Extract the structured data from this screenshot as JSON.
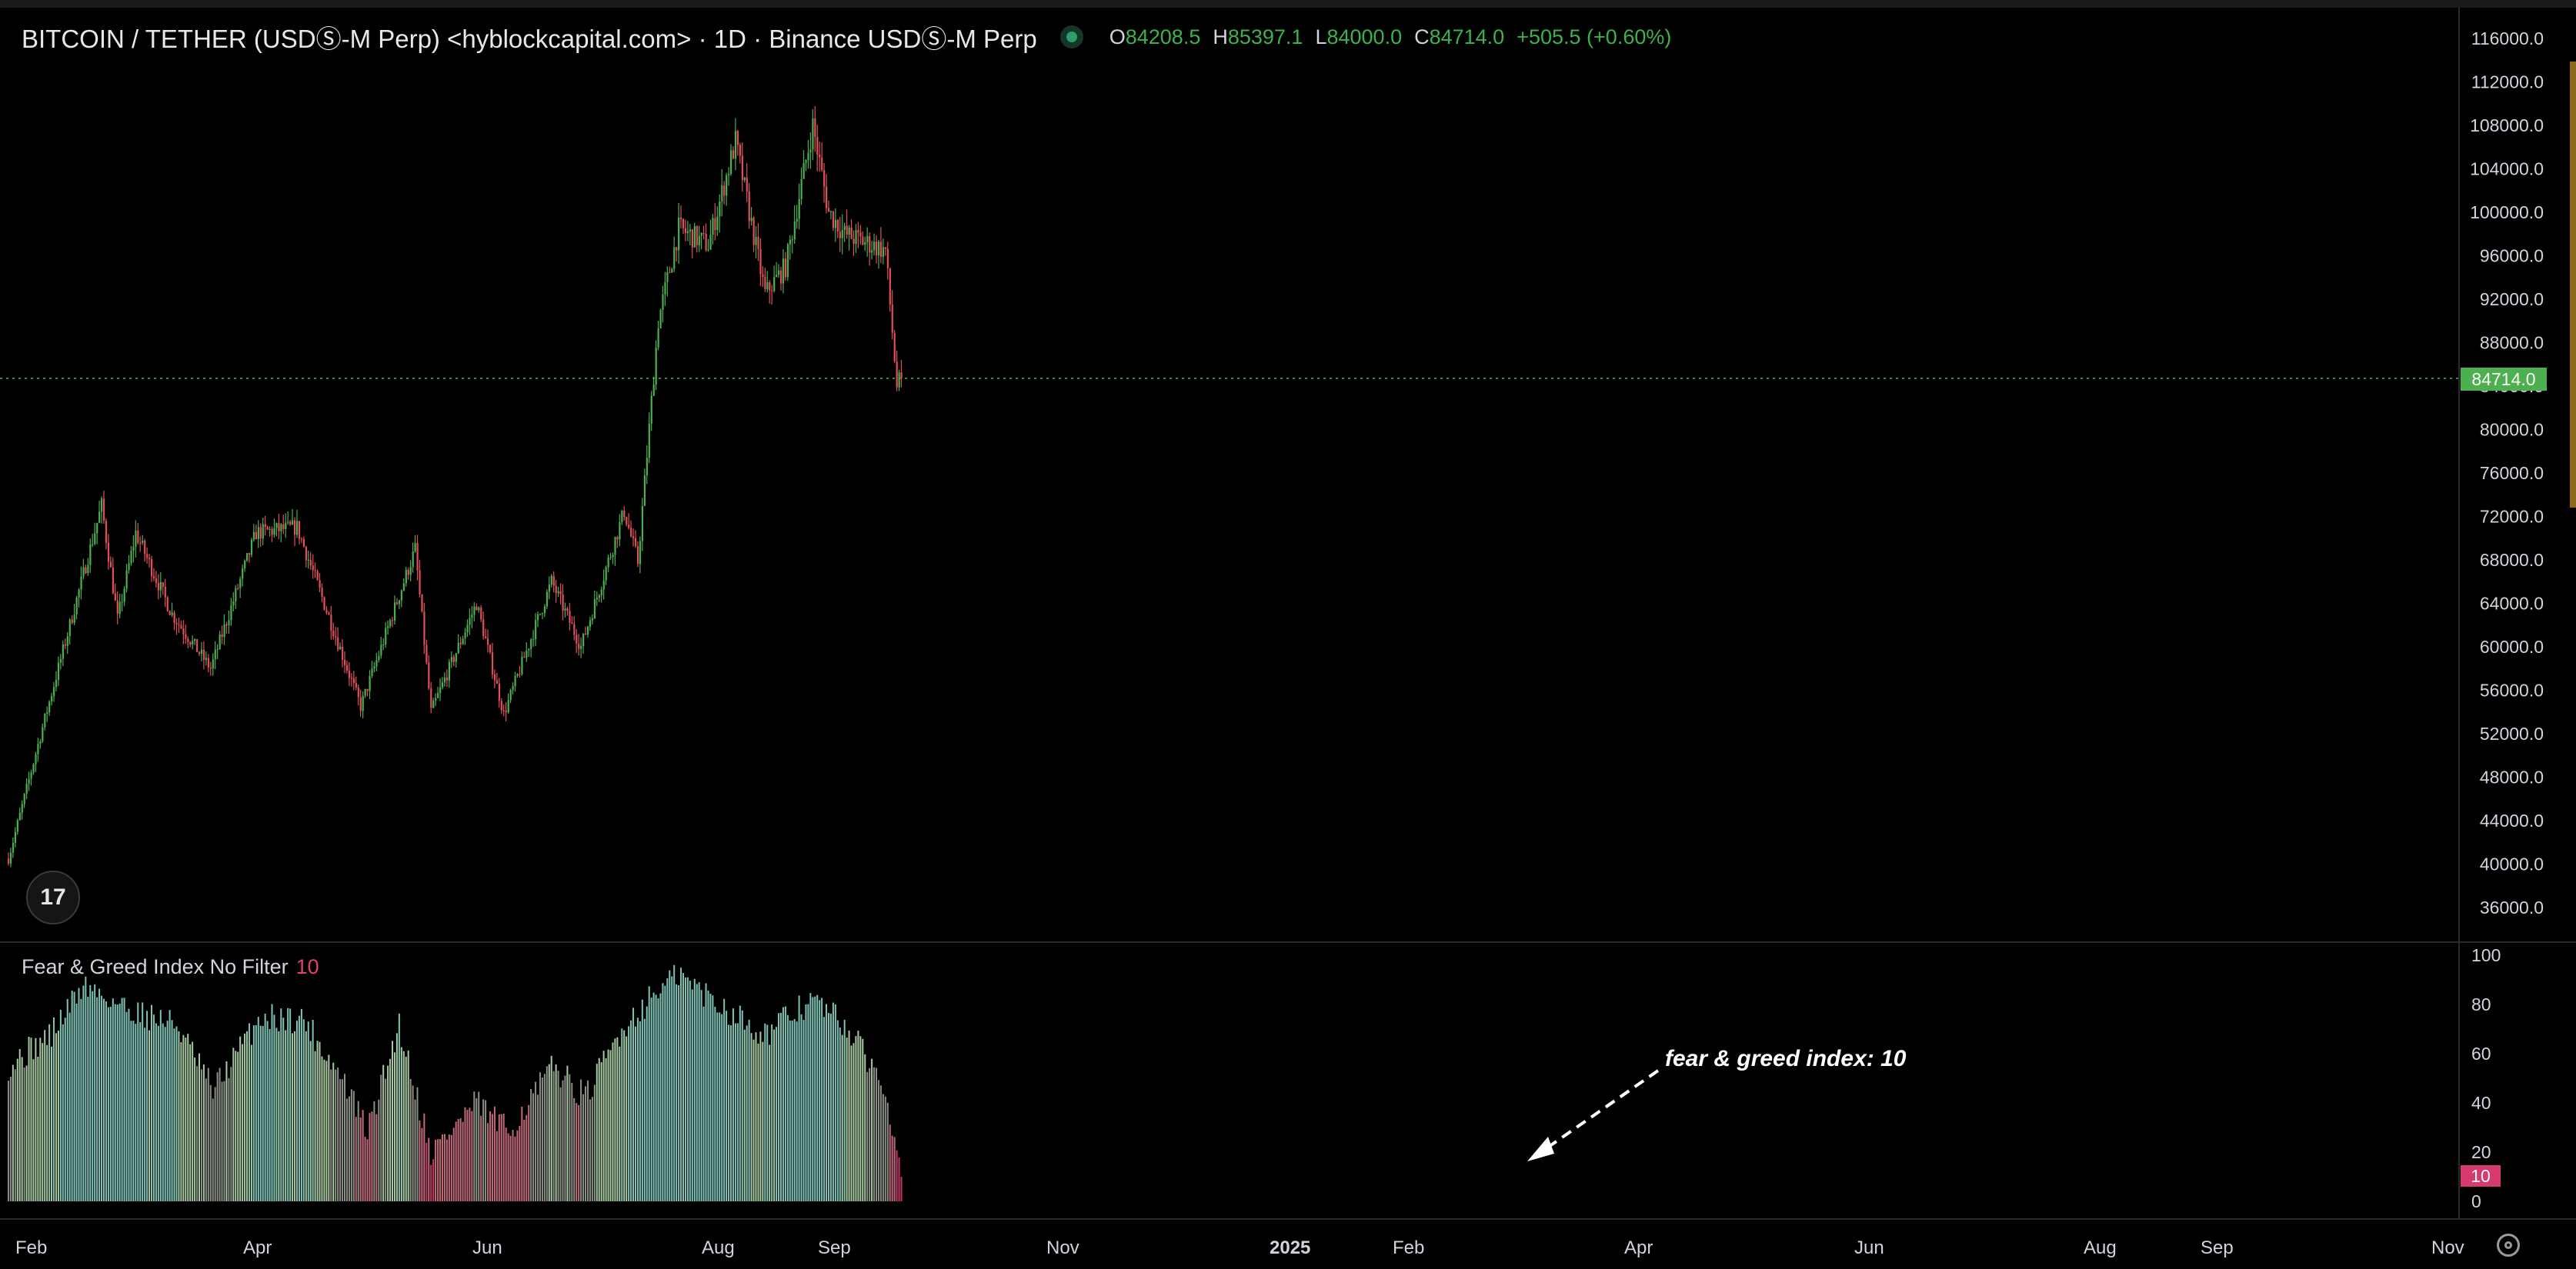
{
  "header": {
    "title": "BITCOIN / TETHER (USDⓈ-M Perp) <hyblockcapital.com> · 1D · Binance USDⓈ-M Perp",
    "ohlc": [
      {
        "key": "O",
        "value": "84208.5"
      },
      {
        "key": "H",
        "value": "85397.1"
      },
      {
        "key": "L",
        "value": "84000.0"
      },
      {
        "key": "C",
        "value": "84714.0"
      },
      {
        "key": "",
        "value": "+505.5 (+0.60%)"
      }
    ]
  },
  "colors": {
    "background": "#000000",
    "up": "#4caf50",
    "down": "#e0505a",
    "price_line": "#4caf50",
    "indicator_tag": "#d63b6e",
    "axis_text": "#d1d4dc"
  },
  "icons": {
    "logo": "tradingview-logo-icon",
    "settings": "gear-icon",
    "status": "live-dot-icon"
  },
  "tv_logo_text": "17",
  "price_tag": "84714.0",
  "indicator": {
    "title": "Fear & Greed Index No Filter",
    "current_value": "10"
  },
  "annotation": "fear & greed index: 10",
  "chart_data": [
    {
      "type": "candlestick",
      "title": "",
      "ylim": [
        33000,
        118000
      ],
      "y_ticks": [
        "116000.0",
        "112000.0",
        "108000.0",
        "104000.0",
        "100000.0",
        "96000.0",
        "92000.0",
        "88000.0",
        "84000.0",
        "80000.0",
        "76000.0",
        "72000.0",
        "68000.0",
        "64000.0",
        "60000.0",
        "56000.0",
        "52000.0",
        "48000.0",
        "44000.0",
        "40000.0",
        "36000.0"
      ],
      "x_ticks": [
        "Feb",
        "Apr",
        "Jun",
        "Aug",
        "Sep",
        "Nov",
        "2025",
        "Feb",
        "Apr",
        "Jun",
        "Aug",
        "Sep",
        "Nov"
      ],
      "last_price": 84714.0,
      "grid": false,
      "close_path": [
        {
          "x": "2024-02-01",
          "y": 40500
        },
        {
          "x": "2024-02-15",
          "y": 51800
        },
        {
          "x": "2024-02-28",
          "y": 62000
        },
        {
          "x": "2024-03-13",
          "y": 73000
        },
        {
          "x": "2024-03-20",
          "y": 62500
        },
        {
          "x": "2024-03-28",
          "y": 70500
        },
        {
          "x": "2024-04-13",
          "y": 63000
        },
        {
          "x": "2024-04-30",
          "y": 58000
        },
        {
          "x": "2024-05-20",
          "y": 70500
        },
        {
          "x": "2024-06-07",
          "y": 71000
        },
        {
          "x": "2024-06-24",
          "y": 61000
        },
        {
          "x": "2024-07-05",
          "y": 54500
        },
        {
          "x": "2024-07-29",
          "y": 69000
        },
        {
          "x": "2024-08-05",
          "y": 54000
        },
        {
          "x": "2024-08-25",
          "y": 64000
        },
        {
          "x": "2024-09-06",
          "y": 53800
        },
        {
          "x": "2024-09-27",
          "y": 66000
        },
        {
          "x": "2024-10-10",
          "y": 60000
        },
        {
          "x": "2024-10-29",
          "y": 72500
        },
        {
          "x": "2024-11-04",
          "y": 67800
        },
        {
          "x": "2024-11-13",
          "y": 90000
        },
        {
          "x": "2024-11-22",
          "y": 98500
        },
        {
          "x": "2024-12-05",
          "y": 97000
        },
        {
          "x": "2024-12-17",
          "y": 106500
        },
        {
          "x": "2024-12-30",
          "y": 92500
        },
        {
          "x": "2025-01-08",
          "y": 95000
        },
        {
          "x": "2025-01-20",
          "y": 108000
        },
        {
          "x": "2025-01-27",
          "y": 100000
        },
        {
          "x": "2025-02-03",
          "y": 98000
        },
        {
          "x": "2025-02-21",
          "y": 96500
        },
        {
          "x": "2025-02-26",
          "y": 84000
        },
        {
          "x": "2025-02-28",
          "y": 84714
        }
      ]
    },
    {
      "type": "bar",
      "title": "Fear & Greed Index No Filter",
      "ylim": [
        0,
        100
      ],
      "y_ticks": [
        "100",
        "80",
        "60",
        "40",
        "20",
        "0"
      ],
      "last_value": 10,
      "value_path": [
        {
          "x": "2024-02-01",
          "y": 55
        },
        {
          "x": "2024-02-20",
          "y": 68
        },
        {
          "x": "2024-03-05",
          "y": 88
        },
        {
          "x": "2024-03-25",
          "y": 78
        },
        {
          "x": "2024-04-15",
          "y": 72
        },
        {
          "x": "2024-05-01",
          "y": 45
        },
        {
          "x": "2024-05-22",
          "y": 75
        },
        {
          "x": "2024-06-10",
          "y": 74
        },
        {
          "x": "2024-06-28",
          "y": 48
        },
        {
          "x": "2024-07-08",
          "y": 28
        },
        {
          "x": "2024-07-22",
          "y": 72
        },
        {
          "x": "2024-08-05",
          "y": 20
        },
        {
          "x": "2024-08-25",
          "y": 40
        },
        {
          "x": "2024-09-08",
          "y": 28
        },
        {
          "x": "2024-09-28",
          "y": 55
        },
        {
          "x": "2024-10-12",
          "y": 42
        },
        {
          "x": "2024-10-28",
          "y": 70
        },
        {
          "x": "2024-11-12",
          "y": 85
        },
        {
          "x": "2024-11-22",
          "y": 92
        },
        {
          "x": "2024-12-10",
          "y": 80
        },
        {
          "x": "2024-12-30",
          "y": 68
        },
        {
          "x": "2025-01-20",
          "y": 82
        },
        {
          "x": "2025-02-03",
          "y": 72
        },
        {
          "x": "2025-02-20",
          "y": 48
        },
        {
          "x": "2025-02-26",
          "y": 25
        },
        {
          "x": "2025-02-28",
          "y": 10
        }
      ]
    }
  ]
}
